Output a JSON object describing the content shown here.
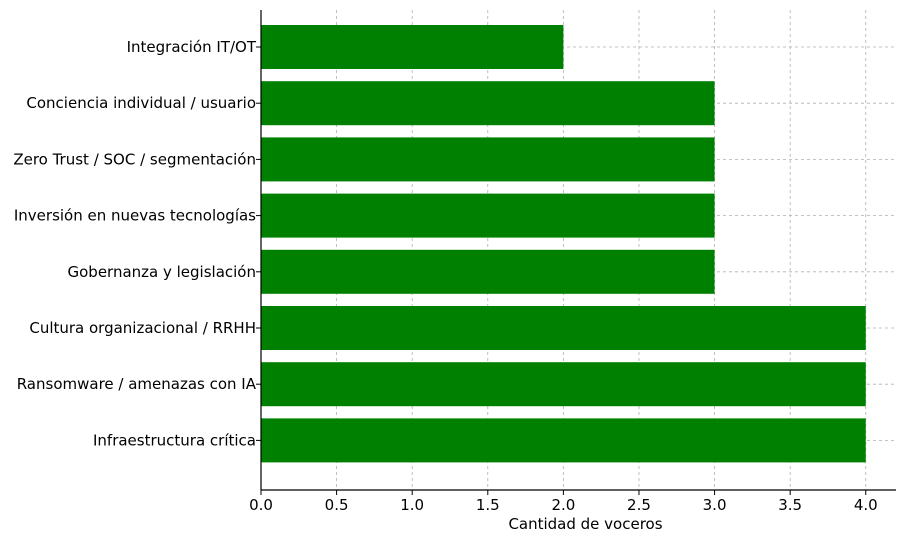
{
  "chart_data": {
    "type": "bar",
    "orientation": "horizontal",
    "title": "",
    "xlabel": "Cantidad de voceros",
    "ylabel": "",
    "xlim": [
      0,
      4.2
    ],
    "x_ticks": [
      0.0,
      0.5,
      1.0,
      1.5,
      2.0,
      2.5,
      3.0,
      3.5,
      4.0
    ],
    "x_tick_labels": [
      "0.0",
      "0.5",
      "1.0",
      "1.5",
      "2.0",
      "2.5",
      "3.0",
      "3.5",
      "4.0"
    ],
    "grid": true,
    "bar_color": "#008000",
    "categories": [
      "Integración IT/OT",
      "Conciencia individual / usuario",
      "Zero Trust / SOC / segmentación",
      "Inversión en nuevas tecnologías",
      "Gobernanza y legislación",
      "Cultura organizacional / RRHH",
      "Ransomware / amenazas con IA",
      "Infraestructura crítica"
    ],
    "values": [
      2,
      3,
      3,
      3,
      3,
      4,
      4,
      4
    ]
  }
}
